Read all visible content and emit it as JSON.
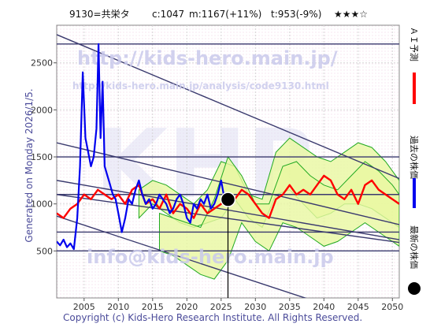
{
  "header": {
    "code_name": "9130=共栄タ",
    "current": "c:1047",
    "mid": "m:1167(+11%)",
    "trend": "t:953(-9%)",
    "stars": "★★★☆"
  },
  "generated": "Generated on Monday 2026/1/5.",
  "copyright": "Copyright (c) Kids-Hero Research Institute. All Rights Reserved.",
  "watermark": {
    "url": "http://kids-hero.main.jp/",
    "analysis": "http://kids-hero.main.jp/analysis/code9130.html",
    "mail": "info@kids-hero.main.jp",
    "big": "KHR"
  },
  "legend": {
    "ai": "ＡＩ予測",
    "past": "過去の株価",
    "latest": "最新の株価"
  },
  "colors": {
    "ai": "#ff0000",
    "past": "#0000ee",
    "band_fill": "#e8f7a0",
    "band_line": "#22aa22",
    "channel": "#3a3a6e",
    "latest": "#000000"
  },
  "chart_data": {
    "type": "line",
    "xlim": [
      2001,
      2051
    ],
    "ylim": [
      0,
      2900
    ],
    "xticks": [
      2005,
      2010,
      2015,
      2020,
      2025,
      2030,
      2035,
      2040,
      2045,
      2050
    ],
    "yticks": [
      500,
      1000,
      1500,
      2000,
      2500
    ],
    "hlines": [
      500,
      700,
      1100,
      1500,
      2700
    ],
    "channels": [
      {
        "x": [
          2001,
          2051
        ],
        "y": [
          2800,
          1270
        ]
      },
      {
        "x": [
          2001,
          2051
        ],
        "y": [
          1650,
          780
        ]
      },
      {
        "x": [
          2001,
          2051
        ],
        "y": [
          1250,
          620
        ]
      },
      {
        "x": [
          2001,
          2051
        ],
        "y": [
          1100,
          590
        ]
      },
      {
        "x": [
          2001,
          2051
        ],
        "y": [
          870,
          -330
        ]
      }
    ],
    "latest": {
      "x": 2026.0,
      "y": 1047
    },
    "series": [
      {
        "name": "過去の株価",
        "x": [
          2001,
          2001.5,
          2002,
          2002.5,
          2003,
          2003.5,
          2004,
          2004.4,
          2004.8,
          2005.2,
          2005.6,
          2006,
          2006.4,
          2006.8,
          2007.1,
          2007.4,
          2007.7,
          2008,
          2008.4,
          2008.8,
          2009.2,
          2009.6,
          2010,
          2010.5,
          2011,
          2011.5,
          2012,
          2012.5,
          2013,
          2013.5,
          2014,
          2014.5,
          2015,
          2015.5,
          2016,
          2016.5,
          2017,
          2017.5,
          2018,
          2018.5,
          2019,
          2019.5,
          2020,
          2020.5,
          2021,
          2021.5,
          2022,
          2022.5,
          2023,
          2023.5,
          2024,
          2024.5,
          2025,
          2025.5,
          2026
        ],
        "y": [
          600,
          560,
          620,
          540,
          580,
          520,
          850,
          1400,
          2400,
          1700,
          1550,
          1400,
          1500,
          1800,
          2700,
          1700,
          2300,
          1400,
          1300,
          1200,
          1100,
          1050,
          900,
          700,
          850,
          1050,
          1000,
          1150,
          1250,
          1100,
          1000,
          1050,
          950,
          1000,
          1100,
          1050,
          1000,
          900,
          950,
          1050,
          1100,
          1000,
          850,
          800,
          1000,
          950,
          1050,
          1000,
          1100,
          950,
          1000,
          1100,
          1250,
          1050,
          1047
        ]
      },
      {
        "name": "ＡＩ予測",
        "x": [
          2001,
          2002,
          2003,
          2004,
          2005,
          2006,
          2007,
          2008,
          2009,
          2010,
          2011,
          2012,
          2013,
          2014,
          2015,
          2016,
          2017,
          2018,
          2019,
          2020,
          2021,
          2022,
          2023,
          2024,
          2025,
          2026,
          2027,
          2028,
          2029,
          2030,
          2031,
          2032,
          2033,
          2034,
          2035,
          2036,
          2037,
          2038,
          2039,
          2040,
          2041,
          2042,
          2043,
          2044,
          2045,
          2046,
          2047,
          2048,
          2049,
          2050,
          2051
        ],
        "y": [
          900,
          850,
          950,
          1000,
          1100,
          1050,
          1150,
          1100,
          1050,
          1100,
          1000,
          1150,
          1200,
          1000,
          1050,
          950,
          1100,
          900,
          1000,
          950,
          850,
          1000,
          900,
          950,
          1000,
          1080,
          1050,
          1150,
          1100,
          1000,
          900,
          850,
          1050,
          1100,
          1200,
          1100,
          1150,
          1100,
          1200,
          1300,
          1250,
          1100,
          1050,
          1150,
          1000,
          1200,
          1250,
          1150,
          1100,
          1050,
          1000
        ]
      }
    ],
    "bands": [
      {
        "x": [
          2013,
          2015,
          2017,
          2019,
          2021,
          2023,
          2025,
          2027,
          2029,
          2031,
          2033,
          2035,
          2037,
          2039,
          2041,
          2043,
          2045,
          2047,
          2049,
          2051
        ],
        "upper": [
          1150,
          1250,
          1200,
          1100,
          1000,
          1150,
          1450,
          1400,
          1100,
          1050,
          1550,
          1700,
          1600,
          1500,
          1450,
          1550,
          1650,
          1600,
          1450,
          1250
        ],
        "lower": [
          850,
          1000,
          900,
          800,
          750,
          800,
          850,
          1050,
          850,
          750,
          1100,
          1150,
          1000,
          850,
          900,
          1000,
          1000,
          950,
          850,
          750
        ]
      },
      {
        "x": [
          2016,
          2018,
          2020,
          2022,
          2024,
          2026,
          2028,
          2030,
          2032,
          2034,
          2036,
          2038,
          2040,
          2042,
          2044,
          2046,
          2048,
          2050,
          2051
        ],
        "upper": [
          900,
          850,
          800,
          750,
          1050,
          1500,
          1300,
          1000,
          1000,
          1400,
          1450,
          1300,
          1200,
          1150,
          1300,
          1450,
          1350,
          1200,
          1100
        ],
        "lower": [
          500,
          450,
          350,
          250,
          200,
          400,
          800,
          600,
          500,
          800,
          750,
          650,
          550,
          600,
          700,
          800,
          700,
          600,
          550
        ]
      }
    ]
  }
}
